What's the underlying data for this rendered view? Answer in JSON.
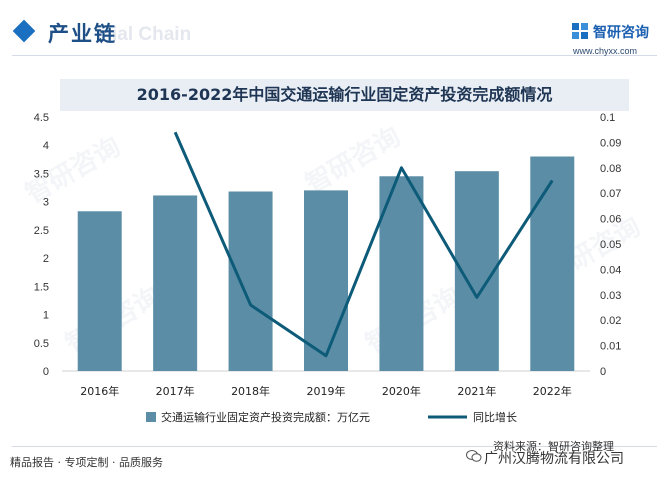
{
  "header": {
    "title": "产业链",
    "watermark": "ial Chain"
  },
  "logo": {
    "name": "智研咨询",
    "url": "www.chyxx.com",
    "icon": "zhiyan-logo-icon"
  },
  "watermark_text": "智研咨询",
  "chart_data": {
    "type": "bar",
    "title": "2016-2022年中国交通运输行业固定资产投资完成额情况",
    "categories": [
      "2016年",
      "2017年",
      "2018年",
      "2019年",
      "2020年",
      "2021年",
      "2022年"
    ],
    "series": [
      {
        "name": "交通运输行业固定资产投资完成额：万亿元",
        "type": "bar",
        "axis": "left",
        "color": "#5b8ea6",
        "values": [
          2.83,
          3.11,
          3.18,
          3.2,
          3.45,
          3.54,
          3.8
        ]
      },
      {
        "name": "同比增长",
        "type": "line",
        "axis": "right",
        "color": "#0d5b78",
        "values": [
          null,
          0.094,
          0.026,
          0.006,
          0.08,
          0.029,
          0.075
        ]
      }
    ],
    "y_left": {
      "min": 0,
      "max": 4.5,
      "ticks": [
        "0",
        "0.5",
        "1",
        "1.5",
        "2",
        "2.5",
        "3",
        "3.5",
        "4",
        "4.5"
      ]
    },
    "y_right": {
      "min": 0,
      "max": 0.1,
      "ticks": [
        "0",
        "0.01",
        "0.02",
        "0.03",
        "0.04",
        "0.05",
        "0.06",
        "0.07",
        "0.08",
        "0.09",
        "0.1"
      ]
    },
    "grid": false,
    "legend_position": "bottom"
  },
  "footer": {
    "left": "精品报告 · 专项定制 · 品质服务",
    "source": "资料来源：智研咨询整理",
    "wechat": "广州汉腾物流有限公司"
  }
}
